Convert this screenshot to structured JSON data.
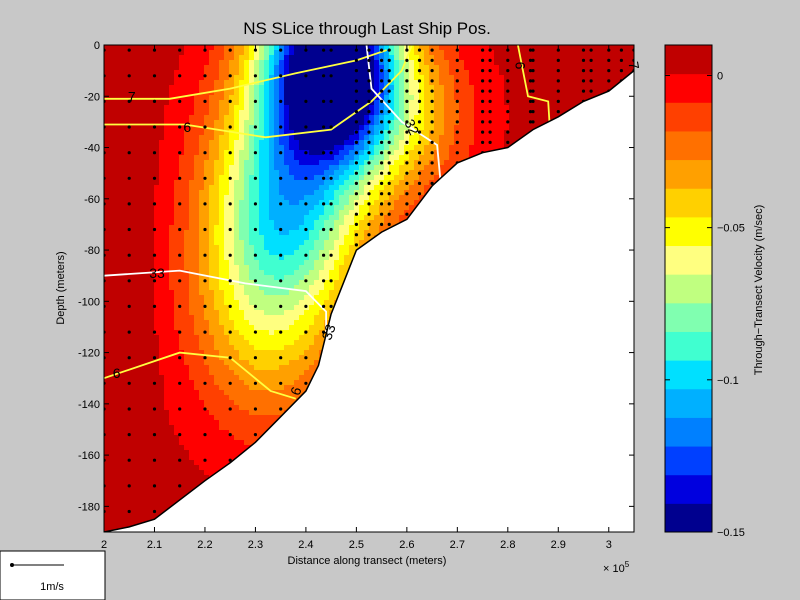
{
  "chart_data": {
    "type": "contour",
    "title": "NS SLice through Last Ship Pos.",
    "xlabel": "Distance along transect (meters)",
    "ylabel": "Depth (meters)",
    "x_exponent_label": "× 10",
    "x_exponent": "5",
    "xlim": [
      200000,
      305000
    ],
    "ylim": [
      -190,
      0
    ],
    "x_ticks": [
      "2",
      "2.1",
      "2.2",
      "2.3",
      "2.4",
      "2.5",
      "2.6",
      "2.7",
      "2.8",
      "2.9",
      "3"
    ],
    "y_ticks": [
      "0",
      "-20",
      "-40",
      "-60",
      "-80",
      "-100",
      "-120",
      "-140",
      "-160",
      "-180"
    ],
    "colorbar": {
      "label": "Through−Transect Velocity (m/sec)",
      "range": [
        -0.15,
        0.01
      ],
      "ticks": [
        "0",
        "−0.05",
        "−0.1",
        "−0.15"
      ],
      "tick_values": [
        0,
        -0.05,
        -0.1,
        -0.15
      ],
      "colormap": [
        "#00008f",
        "#0000df",
        "#0040ff",
        "#0080ff",
        "#00b0ff",
        "#00e0ff",
        "#40ffd0",
        "#80ffb0",
        "#c0ff80",
        "#ffff80",
        "#ffff00",
        "#ffd000",
        "#ffa000",
        "#ff7000",
        "#ff4000",
        "#ff0000",
        "#c00000"
      ]
    },
    "contour_labels": [
      "7",
      "6",
      "33",
      "6",
      "33",
      "6",
      "32",
      "6",
      "7"
    ],
    "bathymetry": {
      "x": [
        200000,
        205000,
        210000,
        220000,
        225000,
        230000,
        235000,
        240000,
        242500,
        245000,
        250000,
        255000,
        260000,
        265000,
        270000,
        275000,
        280000,
        285000,
        290000,
        295000,
        300000,
        305000
      ],
      "depth": [
        -190,
        -188,
        -185,
        -170,
        -163,
        -155,
        -145,
        -135,
        -125,
        -105,
        -80,
        -73,
        -68,
        -55,
        -46,
        -42,
        -40,
        -33,
        -28,
        -22,
        -18,
        -10
      ]
    }
  },
  "scale_legend": {
    "label": "1m/s"
  }
}
